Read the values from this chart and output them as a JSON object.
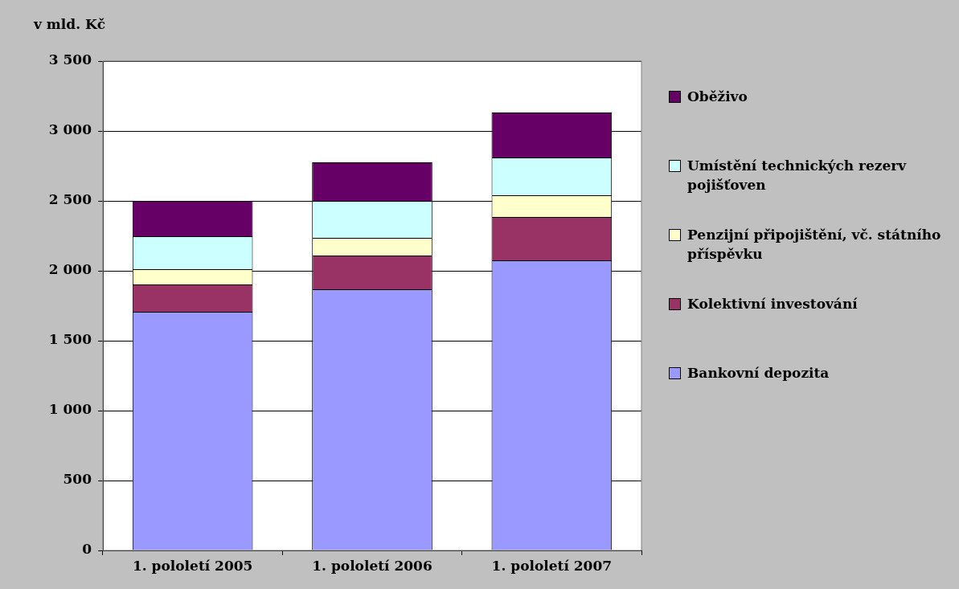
{
  "chart_data": {
    "type": "bar",
    "stacked": true,
    "ylabel": "v mld. Kč",
    "categories": [
      "1. pololetí 2005",
      "1. pololetí 2006",
      "1. pololetí 2007"
    ],
    "series": [
      {
        "name": "Bankovní depozita",
        "color": "#9999ff",
        "values": [
          1707,
          1868,
          2075
        ]
      },
      {
        "name": "Kolektivní investování",
        "color": "#993366",
        "values": [
          195,
          241,
          310
        ]
      },
      {
        "name": "Penzijní připojištění, vč. státního příspěvku",
        "color": "#ffffcc",
        "values": [
          109,
          127,
          155
        ]
      },
      {
        "name": "Umístění technických rezerv pojišťoven",
        "color": "#ccffff",
        "values": [
          236,
          264,
          270
        ]
      },
      {
        "name": "Oběživo",
        "color": "#660066",
        "values": [
          253,
          276,
          322
        ]
      }
    ],
    "ylim": [
      0,
      3500
    ],
    "yticks": [
      0,
      500,
      {
        "value": 1000,
        "label": "1 000"
      },
      {
        "value": 1500,
        "label": "1 500"
      },
      {
        "value": 2000,
        "label": "2 000"
      },
      {
        "value": 2500,
        "label": "2 500"
      },
      {
        "value": 3000,
        "label": "3 000"
      },
      {
        "value": 3500,
        "label": "3 500"
      }
    ],
    "grid": "y",
    "legend": "right"
  }
}
